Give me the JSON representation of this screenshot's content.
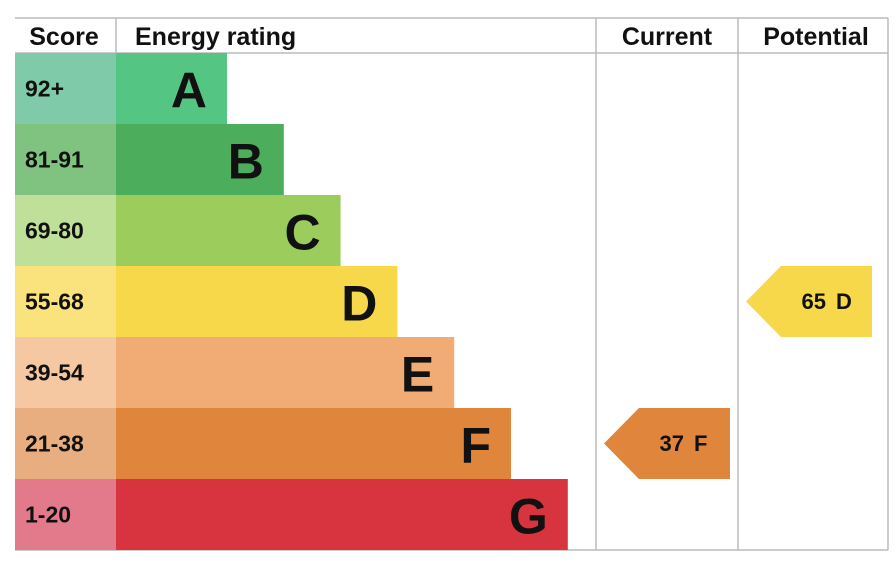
{
  "header": {
    "score": "Score",
    "rating": "Energy rating",
    "current": "Current",
    "potential": "Potential"
  },
  "bands": [
    {
      "score": "92+",
      "letter": "A",
      "color": "#55c584",
      "light": "#7fcaa9"
    },
    {
      "score": "81-91",
      "letter": "B",
      "color": "#4cad5c",
      "light": "#80c27f"
    },
    {
      "score": "69-80",
      "letter": "C",
      "color": "#9ccc5b",
      "light": "#bfe098"
    },
    {
      "score": "55-68",
      "letter": "D",
      "color": "#f7d84a",
      "light": "#fae27c"
    },
    {
      "score": "39-54",
      "letter": "E",
      "color": "#f0ac74",
      "light": "#f5c8a2"
    },
    {
      "score": "21-38",
      "letter": "F",
      "color": "#e0853c",
      "light": "#e9ae80"
    },
    {
      "score": "1-20",
      "letter": "G",
      "color": "#d8343f",
      "light": "#e27a8b"
    }
  ],
  "current": {
    "score": 37,
    "letter": "F"
  },
  "potential": {
    "score": 65,
    "letter": "D"
  }
}
